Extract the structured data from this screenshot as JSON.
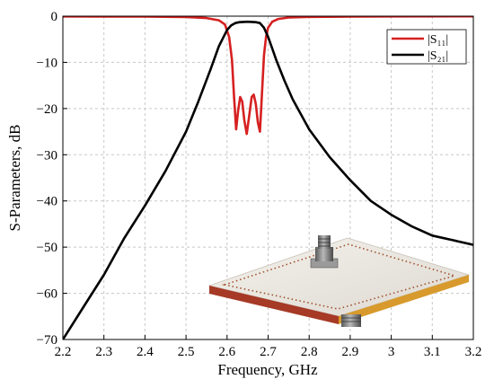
{
  "chart_data": {
    "type": "line",
    "xlabel": "Frequency, GHz",
    "ylabel": "S-Parameters, dB",
    "xlim": [
      2.2,
      3.2
    ],
    "ylim": [
      -70,
      0
    ],
    "xticks": [
      2.2,
      2.3,
      2.4,
      2.5,
      2.6,
      2.7,
      2.8,
      2.9,
      3.0,
      3.1,
      3.2
    ],
    "xtick_labels": [
      "2.2",
      "2.3",
      "2.4",
      "2.5",
      "2.6",
      "2.7",
      "2.8",
      "2.9",
      "3",
      "3.1",
      "3.2"
    ],
    "yticks": [
      0,
      -10,
      -20,
      -30,
      -40,
      -50,
      -60,
      -70
    ],
    "ytick_labels": [
      "0",
      "−10",
      "−20",
      "−30",
      "−40",
      "−50",
      "−60",
      "−70"
    ],
    "grid": true,
    "legend_position": "top-right",
    "inset": "photo of filter board with SMA connectors",
    "series": [
      {
        "name": "|S11|",
        "color": "#d62020",
        "x": [
          2.2,
          2.4,
          2.5,
          2.55,
          2.58,
          2.595,
          2.605,
          2.612,
          2.617,
          2.622,
          2.627,
          2.632,
          2.637,
          2.642,
          2.648,
          2.654,
          2.66,
          2.665,
          2.67,
          2.675,
          2.68,
          2.685,
          2.69,
          2.695,
          2.7,
          2.71,
          2.725,
          2.75,
          2.8,
          2.9,
          3.0,
          3.2
        ],
        "y": [
          -0.05,
          -0.1,
          -0.2,
          -0.4,
          -0.9,
          -1.8,
          -4.5,
          -9.5,
          -17.5,
          -24.5,
          -20.5,
          -17.5,
          -18.5,
          -22.5,
          -25.5,
          -21.5,
          -17.5,
          -17.0,
          -19.0,
          -23.0,
          -25.0,
          -17.0,
          -8.5,
          -4.5,
          -2.5,
          -1.2,
          -0.6,
          -0.3,
          -0.15,
          -0.1,
          -0.05,
          -0.03
        ]
      },
      {
        "name": "|S21|",
        "color": "#000000",
        "x": [
          2.2,
          2.25,
          2.3,
          2.35,
          2.4,
          2.45,
          2.5,
          2.53,
          2.56,
          2.58,
          2.6,
          2.61,
          2.62,
          2.63,
          2.65,
          2.67,
          2.68,
          2.69,
          2.7,
          2.71,
          2.72,
          2.74,
          2.76,
          2.8,
          2.85,
          2.9,
          2.95,
          3.0,
          3.05,
          3.1,
          3.15,
          3.2
        ],
        "y": [
          -70.0,
          -63.0,
          -56.0,
          -48.0,
          -41.0,
          -33.5,
          -25.0,
          -18.5,
          -11.5,
          -6.5,
          -3.0,
          -2.0,
          -1.5,
          -1.3,
          -1.2,
          -1.3,
          -1.5,
          -2.5,
          -4.5,
          -7.0,
          -9.5,
          -14.0,
          -18.0,
          -24.5,
          -30.5,
          -35.5,
          -40.0,
          -43.0,
          -45.5,
          -47.5,
          -48.5,
          -49.5
        ]
      }
    ]
  },
  "legend": [
    {
      "label": "|S₁₁|",
      "color": "#d62020"
    },
    {
      "label": "|S₂₁|",
      "color": "#000000"
    }
  ]
}
